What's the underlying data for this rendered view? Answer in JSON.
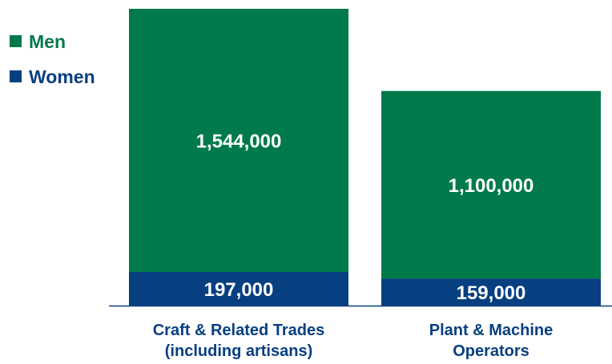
{
  "chart_data": {
    "type": "bar",
    "stacked": true,
    "categories": [
      [
        "Craft & Related Trades",
        "(including artisans)"
      ],
      [
        "Plant & Machine",
        "Operators"
      ]
    ],
    "series": [
      {
        "name": "Women",
        "color": "#073f80",
        "values": [
          197000,
          159000
        ],
        "labels": [
          "197,000",
          "159,000"
        ]
      },
      {
        "name": "Men",
        "color": "#007a4b",
        "values": [
          1544000,
          1100000
        ],
        "labels": [
          "1,544,000",
          "1,100,000"
        ]
      }
    ],
    "legend": {
      "position": "top-left",
      "order": [
        "Men",
        "Women"
      ]
    },
    "axis_color": "#073f80",
    "grid": false
  }
}
